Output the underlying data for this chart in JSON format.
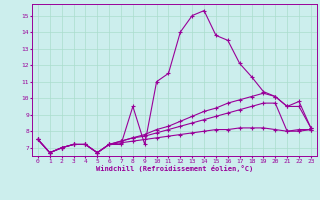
{
  "xlabel": "Windchill (Refroidissement éolien,°C)",
  "background_color": "#cceeed",
  "line_color": "#990099",
  "grid_color": "#aaddcc",
  "xlim": [
    -0.5,
    23.5
  ],
  "ylim": [
    6.5,
    15.7
  ],
  "yticks": [
    7,
    8,
    9,
    10,
    11,
    12,
    13,
    14,
    15
  ],
  "xticks": [
    0,
    1,
    2,
    3,
    4,
    5,
    6,
    7,
    8,
    9,
    10,
    11,
    12,
    13,
    14,
    15,
    16,
    17,
    18,
    19,
    20,
    21,
    22,
    23
  ],
  "series": [
    [
      7.5,
      6.7,
      7.0,
      7.2,
      7.2,
      6.7,
      7.2,
      7.2,
      9.5,
      7.2,
      11.0,
      11.5,
      14.0,
      15.0,
      15.3,
      13.8,
      13.5,
      12.1,
      11.3,
      10.4,
      10.1,
      9.5,
      9.8,
      8.2
    ],
    [
      7.5,
      6.7,
      7.0,
      7.2,
      7.2,
      6.7,
      7.2,
      7.4,
      7.6,
      7.8,
      8.1,
      8.3,
      8.6,
      8.9,
      9.2,
      9.4,
      9.7,
      9.9,
      10.1,
      10.3,
      10.1,
      9.5,
      9.5,
      8.2
    ],
    [
      7.5,
      6.7,
      7.0,
      7.2,
      7.2,
      6.7,
      7.2,
      7.4,
      7.6,
      7.7,
      7.9,
      8.1,
      8.3,
      8.5,
      8.7,
      8.9,
      9.1,
      9.3,
      9.5,
      9.7,
      9.7,
      8.0,
      8.0,
      8.1
    ],
    [
      7.5,
      6.7,
      7.0,
      7.2,
      7.2,
      6.7,
      7.2,
      7.3,
      7.4,
      7.5,
      7.6,
      7.7,
      7.8,
      7.9,
      8.0,
      8.1,
      8.1,
      8.2,
      8.2,
      8.2,
      8.1,
      8.0,
      8.1,
      8.1
    ]
  ]
}
